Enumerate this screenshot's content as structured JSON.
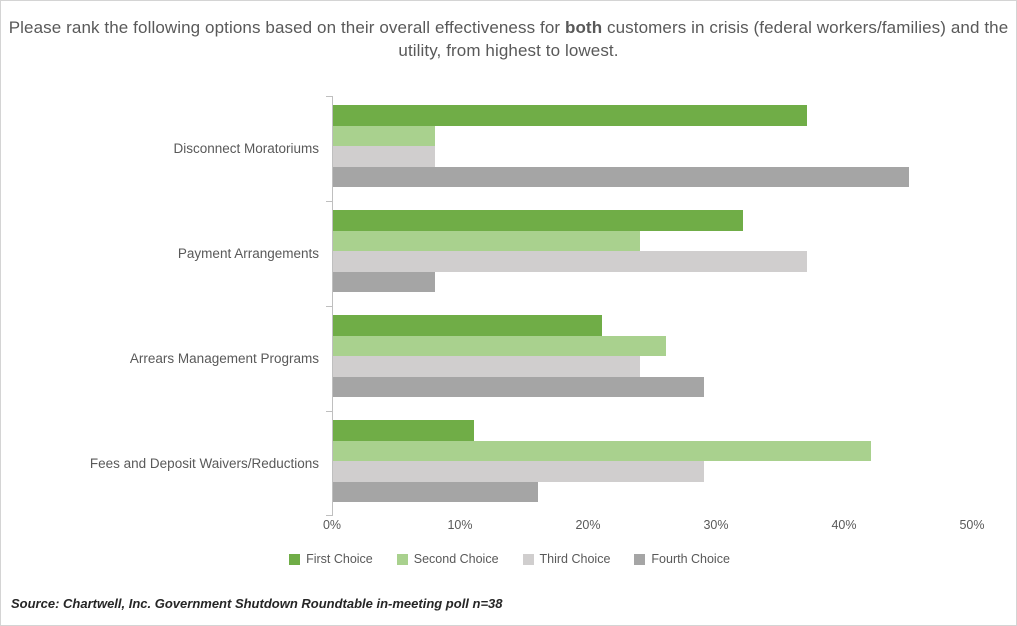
{
  "title": {
    "prefix": "Please rank the following options based on their overall effectiveness for ",
    "bold": "both",
    "suffix": " customers in crisis (federal workers/families) and the utility, from highest to lowest."
  },
  "source": "Source: Chartwell, Inc. Government Shutdown Roundtable in-meeting poll n=38",
  "chart_data": {
    "type": "bar",
    "orientation": "horizontal",
    "title": "Please rank the following options based on their overall effectiveness for both customers in crisis (federal workers/families) and the utility, from highest to lowest.",
    "categories": [
      "Disconnect Moratoriums",
      "Payment Arrangements",
      "Arrears Management Programs",
      "Fees and Deposit Waivers/Reductions"
    ],
    "series": [
      {
        "name": "First Choice",
        "color": "#70AD47",
        "values": [
          37,
          32,
          21,
          11
        ]
      },
      {
        "name": "Second Choice",
        "color": "#A9D18E",
        "values": [
          8,
          24,
          26,
          42
        ]
      },
      {
        "name": "Third Choice",
        "color": "#D0CECE",
        "values": [
          8,
          37,
          24,
          29
        ]
      },
      {
        "name": "Fourth Choice",
        "color": "#A5A5A5",
        "values": [
          45,
          8,
          29,
          16
        ]
      }
    ],
    "x_ticks": [
      "0%",
      "10%",
      "20%",
      "30%",
      "40%",
      "50%"
    ],
    "xlim": [
      0,
      50
    ],
    "grid": false,
    "legend_position": "bottom",
    "axis_color": "#BFBFBF",
    "text_color": "#595959"
  }
}
